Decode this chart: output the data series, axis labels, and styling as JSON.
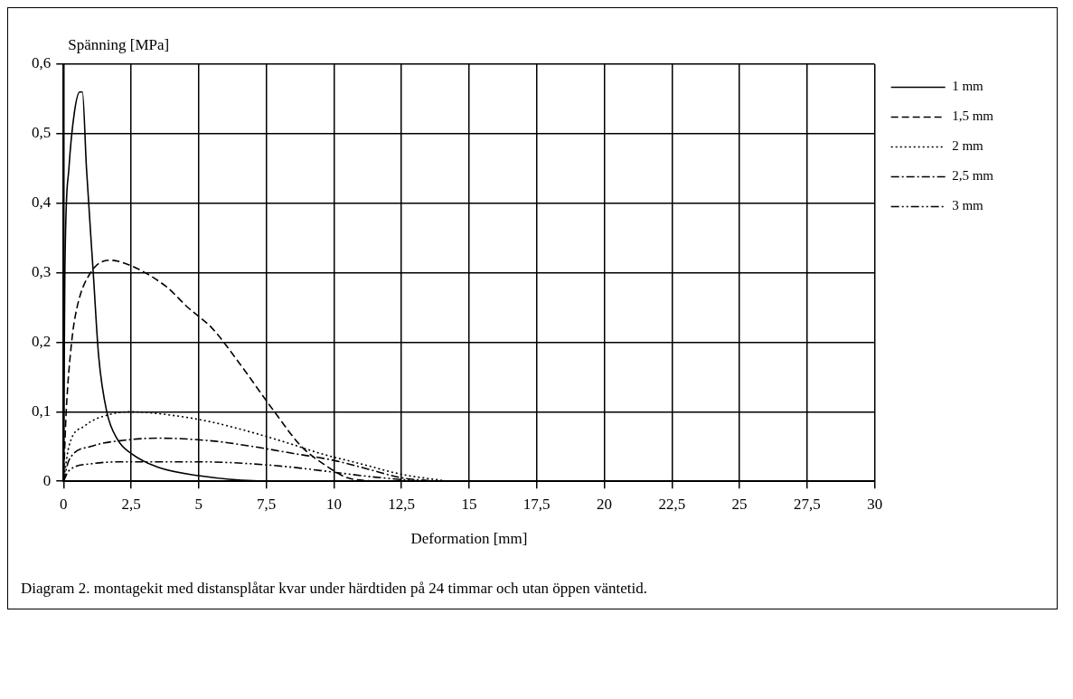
{
  "chart_data": {
    "type": "line",
    "ylabel": "Spänning [MPa]",
    "xlabel": "Deformation [mm]",
    "annotations": [
      "Diagram 2. montagekit med distansplåtar kvar under härdtiden på 24 timmar och utan öppen väntetid."
    ],
    "xlim": [
      0,
      30
    ],
    "xticks": [
      0,
      {
        "value": 2.5,
        "label": "2,5"
      },
      5,
      {
        "value": 7.5,
        "label": "7,5"
      },
      10,
      {
        "value": 12.5,
        "label": "12,5"
      },
      15,
      {
        "value": 17.5,
        "label": "17,5"
      },
      20,
      {
        "value": 22.5,
        "label": "22,5"
      },
      25,
      {
        "value": 27.5,
        "label": "27,5"
      },
      30
    ],
    "ylim": [
      0,
      0.6
    ],
    "yticks": [
      0,
      {
        "value": 0.1,
        "label": "0,1"
      },
      {
        "value": 0.2,
        "label": "0,2"
      },
      {
        "value": 0.3,
        "label": "0,3"
      },
      {
        "value": 0.4,
        "label": "0,4"
      },
      {
        "value": 0.5,
        "label": "0,5"
      },
      {
        "value": 0.6,
        "label": "0,6"
      }
    ],
    "grid": true,
    "legend": "top right",
    "marker": "none",
    "series": [
      {
        "name": "1 mm",
        "color": "#000000",
        "line_style": "solid",
        "x": [
          0,
          0.05,
          0.2,
          0.4,
          0.6,
          0.7,
          0.85,
          1.1,
          1.3,
          1.6,
          2,
          2.5,
          3.5,
          5,
          7,
          10
        ],
        "values": [
          0,
          0.3,
          0.45,
          0.53,
          0.56,
          0.56,
          0.45,
          0.3,
          0.18,
          0.1,
          0.06,
          0.04,
          0.02,
          0.008,
          0.001,
          0
        ]
      },
      {
        "name": "1,5 mm",
        "color": "#000000",
        "line_style": "dashed",
        "x": [
          0,
          0.1,
          0.3,
          0.5,
          1,
          1.7,
          2.5,
          3.8,
          4.6,
          5.5,
          6.5,
          7.8,
          8.8,
          9.8,
          10.5,
          11.5
        ],
        "values": [
          0,
          0.1,
          0.2,
          0.25,
          0.3,
          0.318,
          0.31,
          0.28,
          0.25,
          0.22,
          0.17,
          0.1,
          0.05,
          0.02,
          0.005,
          0
        ]
      },
      {
        "name": "2 mm",
        "color": "#000000",
        "line_style": "dotted",
        "x": [
          0,
          0.2,
          0.8,
          1.6,
          2.5,
          4,
          5.5,
          7,
          8.3,
          9.5,
          11,
          12.5,
          14.2
        ],
        "values": [
          0,
          0.05,
          0.08,
          0.095,
          0.1,
          0.095,
          0.085,
          0.07,
          0.055,
          0.04,
          0.025,
          0.01,
          0
        ]
      },
      {
        "name": "2,5 mm",
        "color": "#000000",
        "line_style": "dashdot",
        "x": [
          0,
          0.2,
          1,
          2.5,
          3.5,
          5.5,
          7,
          8.5,
          10,
          11.5,
          12.5,
          13.8
        ],
        "values": [
          0,
          0.03,
          0.05,
          0.06,
          0.062,
          0.058,
          0.05,
          0.04,
          0.03,
          0.015,
          0.005,
          0
        ]
      },
      {
        "name": "3 mm",
        "color": "#000000",
        "line_style": "dashdotdot",
        "x": [
          0,
          0.2,
          1,
          2.5,
          5,
          7,
          8.5,
          10,
          11.5,
          13.3
        ],
        "values": [
          0,
          0.015,
          0.025,
          0.028,
          0.028,
          0.025,
          0.02,
          0.013,
          0.006,
          0
        ]
      }
    ]
  }
}
